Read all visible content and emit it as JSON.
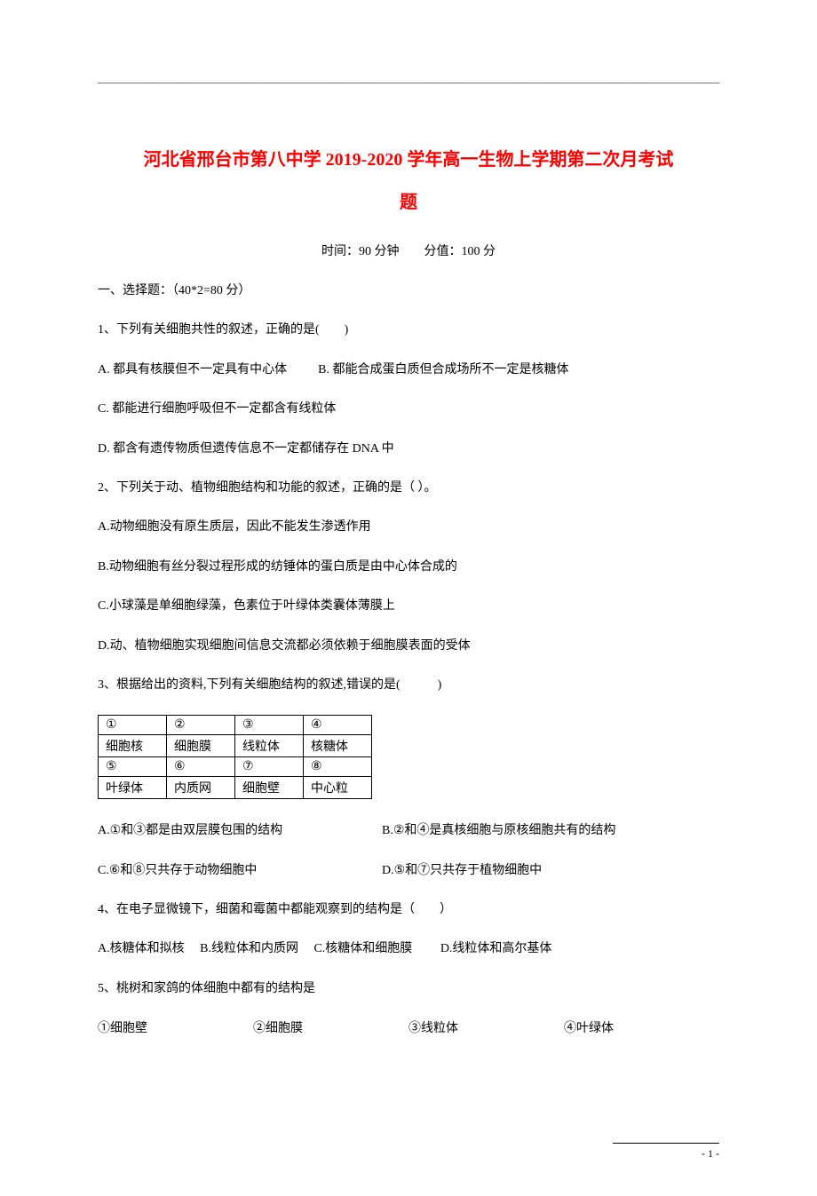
{
  "colors": {
    "title": "#ff0000",
    "body": "#000000",
    "border": "#000000",
    "background": "#ffffff"
  },
  "typography": {
    "title_fontsize": 20,
    "body_fontsize": 14,
    "footer_fontsize": 12,
    "font_family": "SimSun"
  },
  "header": {
    "dash_line": "________________________________________________________________________________________________________________________"
  },
  "title": {
    "line1": "河北省邢台市第八中学 2019-2020 学年高一生物上学期第二次月考试",
    "line2": "题"
  },
  "meta": "时间：90 分钟　　分值：100 分",
  "section1": "一、选择题：（40*2=80 分）",
  "q1": {
    "stem": "1、下列有关细胞共性的叙述，正确的是(　　)",
    "a": "A. 都具有核膜但不一定具有中心体",
    "b": "B. 都能合成蛋白质但合成场所不一定是核糖体",
    "c": "C. 都能进行细胞呼吸但不一定都含有线粒体",
    "d": "D. 都含有遗传物质但遗传信息不一定都储存在 DNA 中"
  },
  "q2": {
    "stem": "2、下列关于动、植物细胞结构和功能的叙述，正确的是（ ）。",
    "a": "A.动物细胞没有原生质层，因此不能发生渗透作用",
    "b": "B.动物细胞有丝分裂过程形成的纺锤体的蛋白质是由中心体合成的",
    "c": "C.小球藻是单细胞绿藻，色素位于叶绿体类囊体薄膜上",
    "d": "D.动、植物细胞实现细胞间信息交流都必须依赖于细胞膜表面的受体"
  },
  "q3": {
    "stem": "3、根据给出的资料,下列有关细胞结构的叙述,错误的是(　　　)",
    "table": {
      "type": "table",
      "columns": 4,
      "rows": [
        [
          "①",
          "②",
          "③",
          "④"
        ],
        [
          "细胞核",
          "细胞膜",
          "线粒体",
          "核糖体"
        ],
        [
          "⑤",
          "⑥",
          "⑦",
          "⑧"
        ],
        [
          "叶绿体",
          "内质网",
          "细胞壁",
          "中心粒"
        ]
      ],
      "border_color": "#000000",
      "cell_padding": 4,
      "min_col_width": 60
    },
    "a": "A.①和③都是由双层膜包围的结构",
    "b": "B.②和④是真核细胞与原核细胞共有的结构",
    "c": "C.⑥和⑧只共存于动物细胞中",
    "d": "D.⑤和⑦只共存于植物细胞中"
  },
  "q4": {
    "stem": "4、在电子显微镜下，细菌和霉菌中都能观察到的结构是（　　）",
    "a": "A.核糖体和拟核",
    "b": "B.线粒体和内质网",
    "c": "C.核糖体和细胞膜",
    "d": "D.线粒体和高尔基体"
  },
  "q5": {
    "stem": "5、桃树和家鸽的体细胞中都有的结构是",
    "o1": "①细胞壁",
    "o2": "②细胞膜",
    "o3": "③线粒体",
    "o4": "④叶绿体"
  },
  "footer": {
    "page": "- 1 -"
  }
}
